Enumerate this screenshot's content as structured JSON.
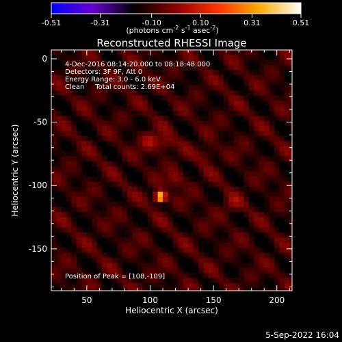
{
  "chart_data": {
    "type": "heatmap",
    "title": "Reconstructed RHESSI Image",
    "xlabel": "Heliocentric X (arcsec)",
    "ylabel": "Heliocentric Y (arcsec)",
    "xlim": [
      22,
      212
    ],
    "ylim": [
      -183,
      7
    ],
    "x_ticks": [
      50,
      100,
      150,
      200
    ],
    "y_ticks": [
      0,
      -50,
      -100,
      -150
    ],
    "colorbar": {
      "label_text": "(photons cm",
      "label_sup1": "-2",
      "label_mid1": " s",
      "label_sup2": "-1",
      "label_mid2": " asec",
      "label_sup3": "-2",
      "label_close": ")",
      "range": [
        -0.51,
        0.51
      ],
      "ticks": [
        "-0.51",
        "-0.31",
        "-0.10",
        "0.10",
        "0.31",
        "0.51"
      ],
      "colors": [
        "#0000ff",
        "#6600cc",
        "#000000",
        "#8b0000",
        "#ff3300",
        "#ffaa00",
        "#ffffff"
      ]
    },
    "annotations": [
      "4-Dec-2016 08:14:20.000 to 08:18:48.000",
      "Detectors: 3F 9F, Att 0",
      "Energy Range: 3.0 - 6.0 keV",
      "Clean     Total counts: 2.69E+04"
    ],
    "peak_label": "Position of Peak = [108,-109]",
    "peak": {
      "x": 108,
      "y": -109,
      "value": 0.51
    },
    "sources": [
      {
        "x": 108,
        "y": -109,
        "value": 0.51
      },
      {
        "x": 100,
        "y": -65,
        "value": 0.22
      },
      {
        "x": 112,
        "y": -67,
        "value": 0.2
      },
      {
        "x": 120,
        "y": -95,
        "value": 0.18
      },
      {
        "x": 145,
        "y": -75,
        "value": 0.17
      },
      {
        "x": 165,
        "y": -115,
        "value": 0.15
      }
    ],
    "grid": false
  },
  "footer": {
    "timestamp": "5-Sep-2022 16:04"
  }
}
